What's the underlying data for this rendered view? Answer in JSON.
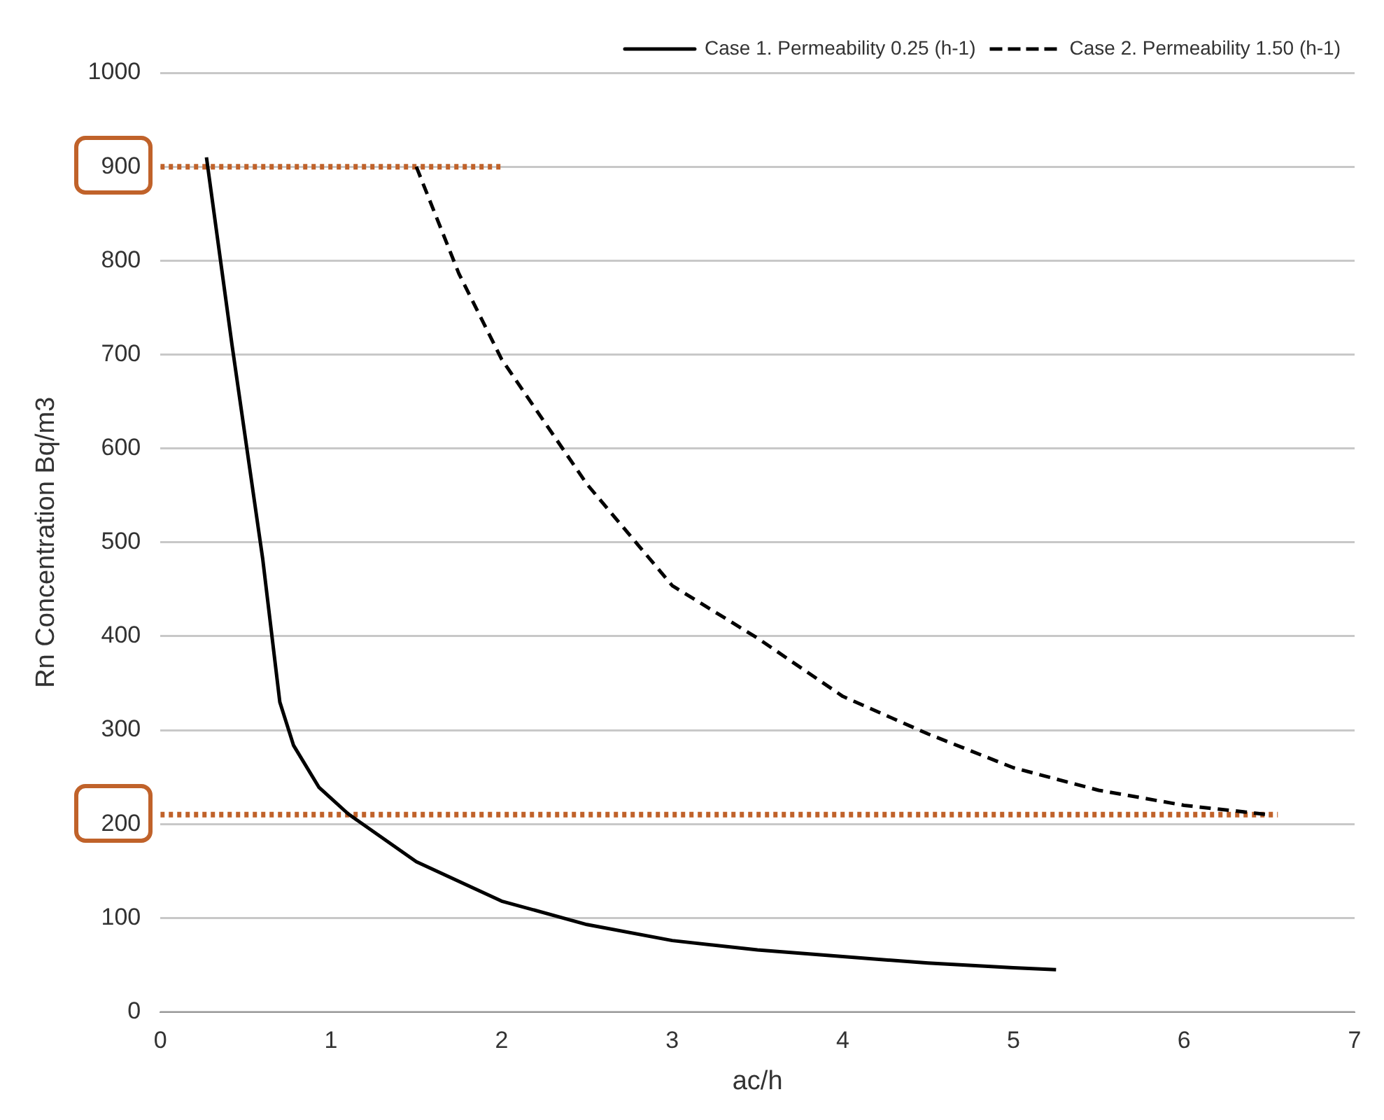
{
  "chart_data": {
    "type": "line",
    "xlabel": "ac/h",
    "ylabel": "Rn Concentration Bq/m3",
    "xlim": [
      0,
      7
    ],
    "xticks": [
      0,
      1,
      2,
      3,
      4,
      5,
      6,
      7
    ],
    "ylim": [
      0,
      1000
    ],
    "yticks": [
      0,
      100,
      200,
      300,
      400,
      500,
      600,
      700,
      800,
      900,
      1000
    ],
    "grid": "y",
    "legend": "top right",
    "marker": "none",
    "series": [
      {
        "name": "Case 1. Permeability 0.25 (h-1)",
        "color": "#000000",
        "line_style": "solid",
        "x": [
          0.27,
          0.42,
          0.6,
          0.7,
          0.78,
          0.93,
          1.1,
          1.5,
          2,
          2.5,
          3,
          3.5,
          4,
          4.5,
          5,
          5.25
        ],
        "values": [
          910,
          710,
          482,
          330,
          284,
          239,
          211,
          160,
          118,
          93,
          76,
          66,
          59,
          52,
          47,
          45
        ]
      },
      {
        "name": "Case 2. Permeability 1.50 (h-1)",
        "color": "#000000",
        "line_style": "dashed",
        "x": [
          1.5,
          1.75,
          2,
          2.5,
          3,
          3.5,
          4,
          4.5,
          5,
          5.5,
          6,
          6.5
        ],
        "values": [
          900,
          786,
          695,
          562,
          454,
          398,
          336,
          296,
          260,
          236,
          220,
          210
        ]
      },
      {
        "color": "#c0622a",
        "line_style": "dotted",
        "x": [
          0,
          2
        ],
        "values": [
          900,
          900
        ]
      },
      {
        "color": "#c0622a",
        "line_style": "dotted",
        "x": [
          0,
          6.55
        ],
        "values": [
          210,
          210
        ]
      }
    ]
  }
}
